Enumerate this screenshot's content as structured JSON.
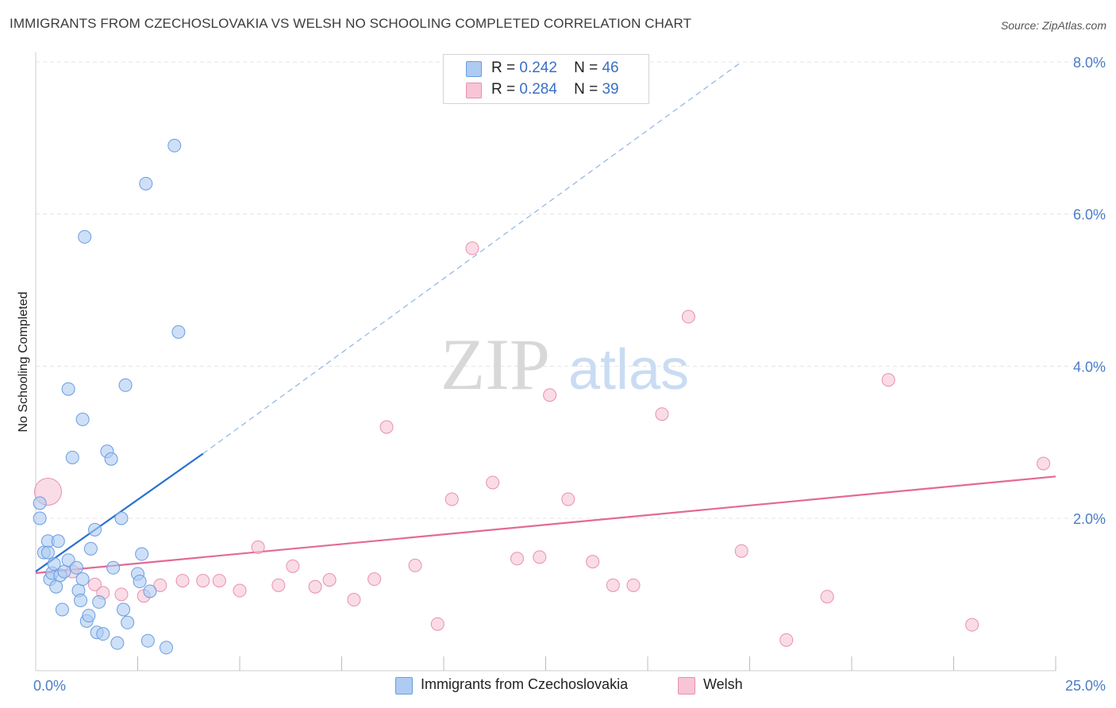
{
  "title": "IMMIGRANTS FROM CZECHOSLOVAKIA VS WELSH NO SCHOOLING COMPLETED CORRELATION CHART",
  "source": "Source: ZipAtlas.com",
  "watermark": {
    "zip": "ZIP",
    "atlas": "atlas"
  },
  "legend": {
    "r_label": "R =",
    "n_label": "N =",
    "rows": [
      {
        "r": "0.242",
        "n": "46"
      },
      {
        "r": "0.284",
        "n": "39"
      }
    ]
  },
  "colors": {
    "blue_fill": "#aecbf2",
    "blue_stroke": "#6a9de0",
    "blue_line": "#2870d0",
    "pink_fill": "#f7c5d5",
    "pink_stroke": "#e890ae",
    "pink_line": "#e36a95"
  },
  "chart_data": {
    "type": "scatter",
    "title": "IMMIGRANTS FROM CZECHOSLOVAKIA VS WELSH NO SCHOOLING COMPLETED CORRELATION CHART",
    "xlabel": "",
    "ylabel": "No Schooling Completed",
    "xlim": [
      0,
      25
    ],
    "ylim": [
      0,
      8.2
    ],
    "x_tick_labels": [
      "0.0%",
      "25.0%"
    ],
    "y_ticks": [
      {
        "value": 2,
        "label": "2.0%"
      },
      {
        "value": 4,
        "label": "4.0%"
      },
      {
        "value": 6,
        "label": "6.0%"
      },
      {
        "value": 8,
        "label": "8.0%"
      }
    ],
    "grid": true,
    "series": [
      {
        "name": "Immigrants from Czechoslovakia",
        "color": "#6a9de0",
        "trend": {
          "x0": 0,
          "y0": 1.3,
          "x1": 4.1,
          "y1": 2.85,
          "dash_x1": 17.3,
          "dash_y1": 8.0
        },
        "points": [
          [
            0.1,
            2.2
          ],
          [
            0.1,
            2.0
          ],
          [
            0.2,
            1.55
          ],
          [
            0.3,
            1.7
          ],
          [
            0.3,
            1.55
          ],
          [
            0.35,
            1.2
          ],
          [
            0.4,
            1.28
          ],
          [
            0.45,
            1.4
          ],
          [
            0.5,
            1.1
          ],
          [
            0.55,
            1.7
          ],
          [
            0.6,
            1.25
          ],
          [
            0.65,
            0.8
          ],
          [
            0.7,
            1.3
          ],
          [
            0.8,
            1.45
          ],
          [
            0.8,
            3.7
          ],
          [
            0.9,
            2.8
          ],
          [
            1.0,
            1.35
          ],
          [
            1.05,
            1.05
          ],
          [
            1.1,
            0.92
          ],
          [
            1.15,
            3.3
          ],
          [
            1.2,
            5.7
          ],
          [
            1.25,
            0.65
          ],
          [
            1.3,
            0.72
          ],
          [
            1.35,
            1.6
          ],
          [
            1.45,
            1.85
          ],
          [
            1.5,
            0.5
          ],
          [
            1.55,
            0.9
          ],
          [
            1.65,
            0.48
          ],
          [
            1.75,
            2.88
          ],
          [
            1.85,
            2.78
          ],
          [
            1.9,
            1.35
          ],
          [
            2.0,
            0.36
          ],
          [
            2.1,
            2.0
          ],
          [
            2.15,
            0.8
          ],
          [
            2.2,
            3.75
          ],
          [
            2.25,
            0.63
          ],
          [
            2.5,
            1.27
          ],
          [
            2.55,
            1.17
          ],
          [
            2.6,
            1.53
          ],
          [
            2.7,
            6.4
          ],
          [
            2.75,
            0.39
          ],
          [
            2.8,
            1.04
          ],
          [
            3.2,
            0.3
          ],
          [
            3.4,
            6.9
          ],
          [
            3.5,
            4.45
          ],
          [
            1.15,
            1.2
          ]
        ]
      },
      {
        "name": "Welsh",
        "color": "#e890ae",
        "trend": {
          "x0": 0,
          "y0": 1.28,
          "x1": 25,
          "y1": 2.55
        },
        "points": [
          [
            0.3,
            2.35
          ],
          [
            0.9,
            1.3
          ],
          [
            1.45,
            1.13
          ],
          [
            1.65,
            1.02
          ],
          [
            2.1,
            1.0
          ],
          [
            2.65,
            0.98
          ],
          [
            3.05,
            1.12
          ],
          [
            3.6,
            1.18
          ],
          [
            4.1,
            1.18
          ],
          [
            4.5,
            1.18
          ],
          [
            5.0,
            1.05
          ],
          [
            5.45,
            1.62
          ],
          [
            5.95,
            1.12
          ],
          [
            6.3,
            1.37
          ],
          [
            6.85,
            1.1
          ],
          [
            7.2,
            1.19
          ],
          [
            7.8,
            0.93
          ],
          [
            8.3,
            1.2
          ],
          [
            8.6,
            3.2
          ],
          [
            9.3,
            1.38
          ],
          [
            9.85,
            0.61
          ],
          [
            10.2,
            2.25
          ],
          [
            10.7,
            5.55
          ],
          [
            11.2,
            2.47
          ],
          [
            11.8,
            1.47
          ],
          [
            12.35,
            1.49
          ],
          [
            12.6,
            3.62
          ],
          [
            13.05,
            2.25
          ],
          [
            13.65,
            1.43
          ],
          [
            14.15,
            1.12
          ],
          [
            14.65,
            1.12
          ],
          [
            15.35,
            3.37
          ],
          [
            16.0,
            4.65
          ],
          [
            17.3,
            1.57
          ],
          [
            18.4,
            0.4
          ],
          [
            19.4,
            0.97
          ],
          [
            20.9,
            3.82
          ],
          [
            22.95,
            0.6
          ],
          [
            24.7,
            2.72
          ]
        ]
      }
    ]
  },
  "bottom_legend": [
    "Immigrants from Czechoslovakia",
    "Welsh"
  ]
}
